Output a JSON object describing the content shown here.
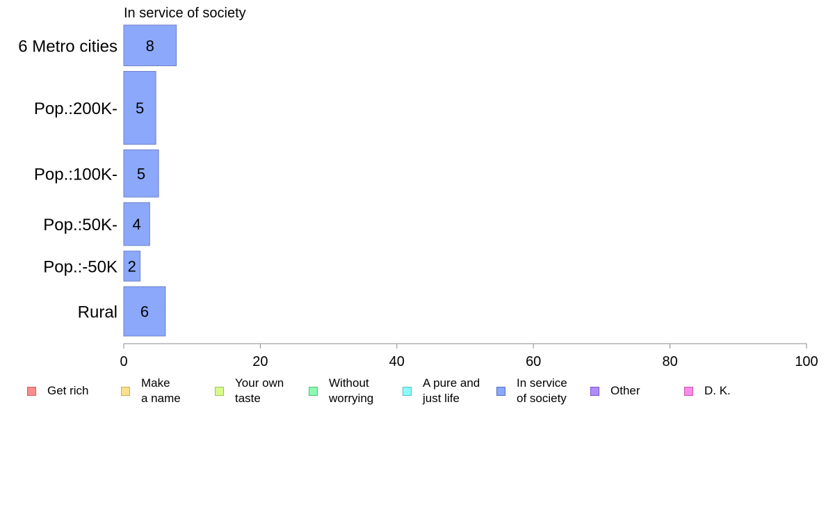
{
  "chart_data": {
    "type": "bar",
    "orientation": "horizontal",
    "title": "In service of society",
    "categories": [
      "6 Metro cities",
      "Pop.:200K-",
      "Pop.:100K-",
      "Pop.:50K-",
      "Pop.:-50K",
      "Rural"
    ],
    "values": [
      7.7,
      4.7,
      5.1,
      3.8,
      2.4,
      6.1
    ],
    "value_labels": [
      "8",
      "5",
      "5",
      "4",
      "2",
      "6"
    ],
    "category_weights": [
      0.95,
      1.7,
      1.1,
      1.0,
      0.7,
      1.15
    ],
    "xlim": [
      0,
      100
    ],
    "xticks": [
      "0",
      "20",
      "40",
      "60",
      "80",
      "100"
    ],
    "xtick_values": [
      0,
      20,
      40,
      60,
      80,
      100
    ],
    "grid": false,
    "bar_color": "#8CA8FA",
    "bar_edge": "#6B7FC8",
    "legend_placement": "bottom"
  },
  "legend": {
    "items": [
      {
        "label": "Get rich",
        "color": "#FA8C8C",
        "edge": "#D06060"
      },
      {
        "label": "Make\na name",
        "color": "#FAE08C",
        "edge": "#C8B050"
      },
      {
        "label": "Your own\ntaste",
        "color": "#D8FA8C",
        "edge": "#A0C050"
      },
      {
        "label": "Without\nworrying",
        "color": "#8CFAB0",
        "edge": "#50C078"
      },
      {
        "label": "A pure and\njust life",
        "color": "#8CFAFA",
        "edge": "#50C0C0"
      },
      {
        "label": "In service\nof society",
        "color": "#8CA8FA",
        "edge": "#5070C8"
      },
      {
        "label": "Other",
        "color": "#B08CFA",
        "edge": "#7850C8"
      },
      {
        "label": "D. K.",
        "color": "#FA8CE8",
        "edge": "#C850B0"
      }
    ]
  }
}
